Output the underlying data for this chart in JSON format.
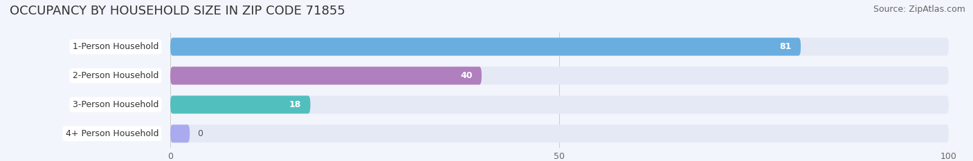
{
  "title": "OCCUPANCY BY HOUSEHOLD SIZE IN ZIP CODE 71855",
  "source": "Source: ZipAtlas.com",
  "categories": [
    "1-Person Household",
    "2-Person Household",
    "3-Person Household",
    "4+ Person Household"
  ],
  "values": [
    81,
    40,
    18,
    0
  ],
  "bar_colors": [
    "#6aaee0",
    "#b07fbe",
    "#52bfbf",
    "#aaaaee"
  ],
  "background_color": "#f2f5fc",
  "bar_background": "#e4e9f5",
  "xlim": [
    0,
    100
  ],
  "xticks": [
    0,
    50,
    100
  ],
  "title_fontsize": 13,
  "source_fontsize": 9,
  "label_fontsize": 9,
  "value_fontsize": 9,
  "bar_height": 0.62
}
